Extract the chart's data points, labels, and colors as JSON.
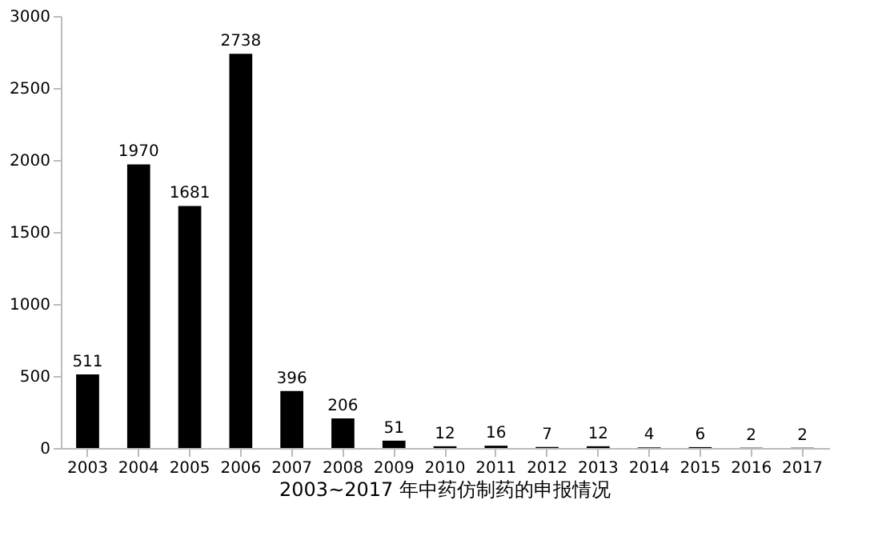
{
  "chart_data": {
    "type": "bar",
    "title": "2003~2017 年中药仿制药的申报情况",
    "categories": [
      "2003",
      "2004",
      "2005",
      "2006",
      "2007",
      "2008",
      "2009",
      "2010",
      "2011",
      "2012",
      "2013",
      "2014",
      "2015",
      "2016",
      "2017"
    ],
    "values": [
      511,
      1970,
      1681,
      2738,
      396,
      206,
      51,
      12,
      16,
      7,
      12,
      4,
      6,
      2,
      2
    ],
    "color": "#000000",
    "ylim": [
      0,
      3000
    ],
    "yticks": [
      0,
      500,
      1000,
      1500,
      2000,
      2500,
      3000
    ],
    "grid": false,
    "data_labels": true
  }
}
